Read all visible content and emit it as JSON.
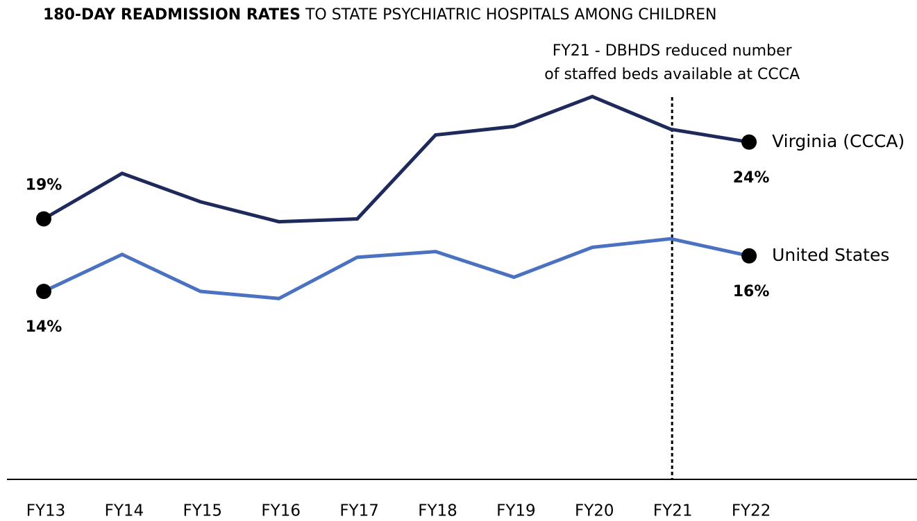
{
  "chart_data": {
    "type": "line",
    "title": [
      "180-DAY READMISSION RATES",
      "TO STATE PSYCHIATRIC HOSPITALS AMONG CHILDREN"
    ],
    "categories": [
      "FY13",
      "FY14",
      "FY15",
      "FY16",
      "FY17",
      "FY18",
      "FY19",
      "FY20",
      "FY21",
      "FY22"
    ],
    "series": [
      {
        "name": "Virginia (CCCA)",
        "color": "#1f2a5c",
        "values": [
          19.0,
          22.2,
          20.2,
          18.8,
          19.0,
          24.9,
          25.5,
          27.6,
          25.3,
          24.4
        ],
        "value_labels": [
          "19%",
          null,
          null,
          null,
          null,
          null,
          null,
          null,
          null,
          "24%"
        ]
      },
      {
        "name": "United States",
        "color": "#4a72c0",
        "values": [
          13.9,
          16.5,
          13.9,
          13.4,
          16.3,
          16.7,
          14.9,
          17.0,
          17.6,
          16.4
        ],
        "value_labels": [
          "14%",
          null,
          null,
          null,
          null,
          null,
          null,
          null,
          null,
          "16%"
        ]
      }
    ],
    "ylim": [
      0,
      30
    ],
    "annotation": {
      "x": "FY21",
      "text": [
        "FY21 - DBHDS reduced number",
        "of staffed beds available at CCCA"
      ]
    }
  }
}
